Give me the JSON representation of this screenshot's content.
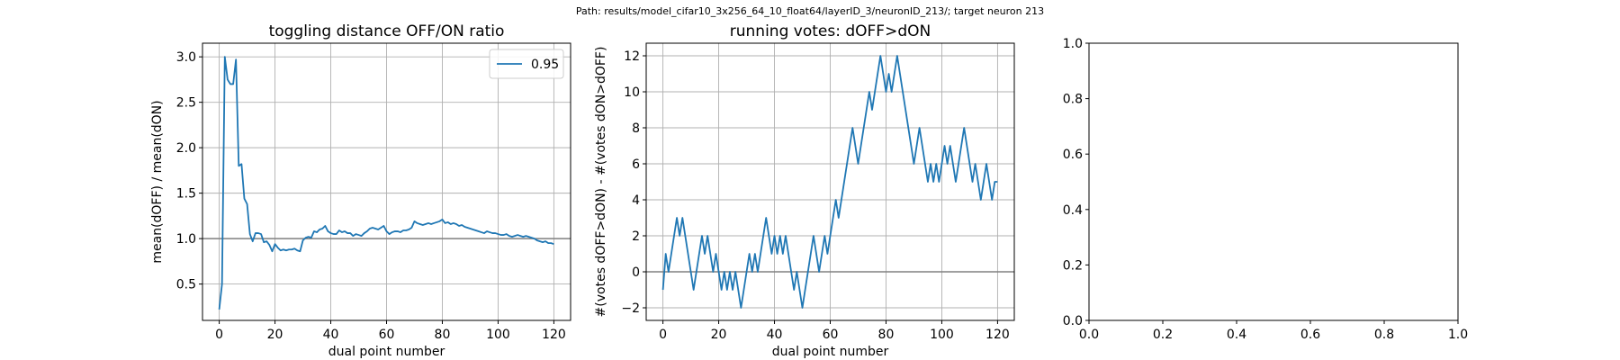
{
  "suptitle": "Path: results/model_cifar10_3x256_64_10_float64/layerID_3/neuronID_213/; target neuron 213",
  "colors": {
    "series": "#1f77b4",
    "grid": "#b0b0b0",
    "refline": "#808080",
    "legend_border": "#cccccc"
  },
  "chart_data": [
    {
      "type": "line",
      "title": "toggling distance OFF/ON ratio",
      "xlabel": "dual point number",
      "ylabel": "mean(dOFF) / mean(dON)",
      "xlim": [
        -6,
        126
      ],
      "ylim": [
        0.1,
        3.15
      ],
      "xticks": [
        0,
        20,
        40,
        60,
        80,
        100,
        120
      ],
      "xtick_labels": [
        "0",
        "20",
        "40",
        "60",
        "80",
        "100",
        "120"
      ],
      "yticks": [
        0.5,
        1.0,
        1.5,
        2.0,
        2.5,
        3.0
      ],
      "ytick_labels": [
        "0.5",
        "1.0",
        "1.5",
        "2.0",
        "2.5",
        "3.0"
      ],
      "grid": true,
      "reference_line_y": 1.0,
      "legend": {
        "position": "top-right",
        "entries": [
          "0.95"
        ]
      },
      "series": [
        {
          "name": "0.95",
          "x": [
            0,
            1,
            2,
            3,
            4,
            5,
            6,
            7,
            8,
            9,
            10,
            11,
            12,
            13,
            14,
            15,
            16,
            17,
            18,
            19,
            20,
            21,
            22,
            23,
            24,
            25,
            26,
            27,
            28,
            29,
            30,
            31,
            32,
            33,
            34,
            35,
            36,
            37,
            38,
            39,
            40,
            41,
            42,
            43,
            44,
            45,
            46,
            47,
            48,
            49,
            50,
            51,
            52,
            53,
            54,
            55,
            56,
            57,
            58,
            59,
            60,
            61,
            62,
            63,
            64,
            65,
            66,
            67,
            68,
            69,
            70,
            71,
            72,
            73,
            74,
            75,
            76,
            77,
            78,
            79,
            80,
            81,
            82,
            83,
            84,
            85,
            86,
            87,
            88,
            89,
            90,
            91,
            92,
            93,
            94,
            95,
            96,
            97,
            98,
            99,
            100,
            101,
            102,
            103,
            104,
            105,
            106,
            107,
            108,
            109,
            110,
            111,
            112,
            113,
            114,
            115,
            116,
            117,
            118,
            119,
            120
          ],
          "y": [
            0.22,
            0.5,
            3.0,
            2.75,
            2.7,
            2.7,
            2.97,
            1.8,
            1.82,
            1.44,
            1.38,
            1.05,
            0.97,
            1.06,
            1.06,
            1.05,
            0.96,
            0.97,
            0.93,
            0.86,
            0.94,
            0.9,
            0.87,
            0.88,
            0.87,
            0.88,
            0.88,
            0.89,
            0.87,
            0.86,
            0.98,
            1.01,
            1.02,
            1.01,
            1.08,
            1.07,
            1.1,
            1.11,
            1.14,
            1.08,
            1.06,
            1.05,
            1.05,
            1.09,
            1.07,
            1.08,
            1.06,
            1.06,
            1.03,
            1.05,
            1.04,
            1.03,
            1.06,
            1.08,
            1.11,
            1.12,
            1.11,
            1.1,
            1.12,
            1.14,
            1.08,
            1.05,
            1.07,
            1.08,
            1.08,
            1.07,
            1.09,
            1.09,
            1.1,
            1.12,
            1.19,
            1.17,
            1.16,
            1.15,
            1.16,
            1.17,
            1.16,
            1.17,
            1.18,
            1.19,
            1.21,
            1.17,
            1.18,
            1.16,
            1.17,
            1.16,
            1.14,
            1.15,
            1.13,
            1.12,
            1.11,
            1.1,
            1.09,
            1.08,
            1.07,
            1.06,
            1.08,
            1.07,
            1.06,
            1.06,
            1.05,
            1.04,
            1.04,
            1.05,
            1.03,
            1.02,
            1.03,
            1.04,
            1.03,
            1.02,
            1.03,
            1.02,
            1.01,
            1.0,
            0.98,
            0.97,
            0.96,
            0.97,
            0.95,
            0.95,
            0.94
          ]
        }
      ]
    },
    {
      "type": "line",
      "title": "running votes: dOFF>dON",
      "xlabel": "dual point number",
      "ylabel": "#(votes dOFF>dON) - #(votes dON>dOFF)",
      "xlim": [
        -6,
        126
      ],
      "ylim": [
        -2.7,
        12.7
      ],
      "xticks": [
        0,
        20,
        40,
        60,
        80,
        100,
        120
      ],
      "xtick_labels": [
        "0",
        "20",
        "40",
        "60",
        "80",
        "100",
        "120"
      ],
      "yticks": [
        -2,
        0,
        2,
        4,
        6,
        8,
        10,
        12
      ],
      "ytick_labels": [
        "−2",
        "0",
        "2",
        "4",
        "6",
        "8",
        "10",
        "12"
      ],
      "grid": true,
      "reference_line_y": 0,
      "series": [
        {
          "x": [
            0,
            1,
            2,
            3,
            4,
            5,
            6,
            7,
            8,
            9,
            10,
            11,
            12,
            13,
            14,
            15,
            16,
            17,
            18,
            19,
            20,
            21,
            22,
            23,
            24,
            25,
            26,
            27,
            28,
            29,
            30,
            31,
            32,
            33,
            34,
            35,
            36,
            37,
            38,
            39,
            40,
            41,
            42,
            43,
            44,
            45,
            46,
            47,
            48,
            49,
            50,
            51,
            52,
            53,
            54,
            55,
            56,
            57,
            58,
            59,
            60,
            61,
            62,
            63,
            64,
            65,
            66,
            67,
            68,
            69,
            70,
            71,
            72,
            73,
            74,
            75,
            76,
            77,
            78,
            79,
            80,
            81,
            82,
            83,
            84,
            85,
            86,
            87,
            88,
            89,
            90,
            91,
            92,
            93,
            94,
            95,
            96,
            97,
            98,
            99,
            100,
            101,
            102,
            103,
            104,
            105,
            106,
            107,
            108,
            109,
            110,
            111,
            112,
            113,
            114,
            115,
            116,
            117,
            118,
            119,
            120
          ],
          "y": [
            -1,
            1,
            0,
            1,
            2,
            3,
            2,
            3,
            2,
            1,
            0,
            -1,
            0,
            1,
            2,
            1,
            2,
            1,
            0,
            1,
            0,
            -1,
            0,
            -1,
            0,
            -1,
            0,
            -1,
            -2,
            -1,
            0,
            1,
            0,
            1,
            0,
            1,
            2,
            3,
            2,
            1,
            2,
            1,
            2,
            1,
            2,
            1,
            0,
            -1,
            0,
            -1,
            -2,
            -1,
            0,
            1,
            2,
            1,
            0,
            1,
            2,
            1,
            2,
            3,
            4,
            3,
            4,
            5,
            6,
            7,
            8,
            7,
            6,
            7,
            8,
            9,
            10,
            9,
            10,
            11,
            12,
            11,
            10,
            11,
            10,
            11,
            12,
            11,
            10,
            9,
            8,
            7,
            6,
            7,
            8,
            7,
            6,
            5,
            6,
            5,
            6,
            5,
            6,
            7,
            6,
            7,
            6,
            5,
            6,
            7,
            8,
            7,
            6,
            5,
            6,
            5,
            4,
            5,
            6,
            5,
            4,
            5,
            5
          ]
        }
      ]
    },
    {
      "type": "line",
      "xlim": [
        0.0,
        1.0
      ],
      "ylim": [
        0.0,
        1.0
      ],
      "xticks": [
        0.0,
        0.2,
        0.4,
        0.6,
        0.8,
        1.0
      ],
      "xtick_labels": [
        "0.0",
        "0.2",
        "0.4",
        "0.6",
        "0.8",
        "1.0"
      ],
      "yticks": [
        0.0,
        0.2,
        0.4,
        0.6,
        0.8,
        1.0
      ],
      "ytick_labels": [
        "0.0",
        "0.2",
        "0.4",
        "0.6",
        "0.8",
        "1.0"
      ],
      "grid": false,
      "series": []
    }
  ]
}
